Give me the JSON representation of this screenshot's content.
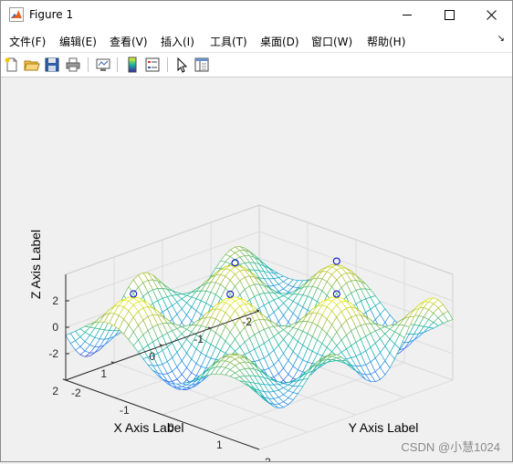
{
  "window": {
    "title": "Figure 1",
    "minimize_glyph": "—",
    "close_glyph": "✕"
  },
  "menu": {
    "items": [
      {
        "label": "文件(F)"
      },
      {
        "label": "编辑(E)"
      },
      {
        "label": "查看(V)"
      },
      {
        "label": "插入(I)"
      },
      {
        "label": "工具(T)"
      },
      {
        "label": "桌面(D)"
      },
      {
        "label": "窗口(W)"
      },
      {
        "label": "帮助(H)"
      }
    ],
    "dock_arrow": "↘"
  },
  "toolbar": {
    "icons": [
      "new-figure-icon",
      "open-file-icon",
      "save-icon",
      "print-icon",
      "link-plot-icon",
      "colorbar-icon",
      "legend-icon",
      "pointer-icon",
      "property-inspector-icon"
    ]
  },
  "plot": {
    "xlabel": "X Axis Label",
    "ylabel": "Y Axis Label",
    "zlabel": "Z Axis Label",
    "x_ticks": [
      "-2",
      "-1",
      "0",
      "1",
      "2"
    ],
    "y_ticks": [
      "-2",
      "-1",
      "0",
      "1",
      "2"
    ],
    "z_ticks": [
      "-2",
      "0",
      "2"
    ],
    "x_range": [
      -2,
      2
    ],
    "y_range": [
      -2,
      2
    ],
    "z_range": [
      -4,
      4
    ],
    "surface_colormap": "parula",
    "marker_color": "#0000cc",
    "grid": true
  },
  "watermark": "CSDN @小慧1024"
}
